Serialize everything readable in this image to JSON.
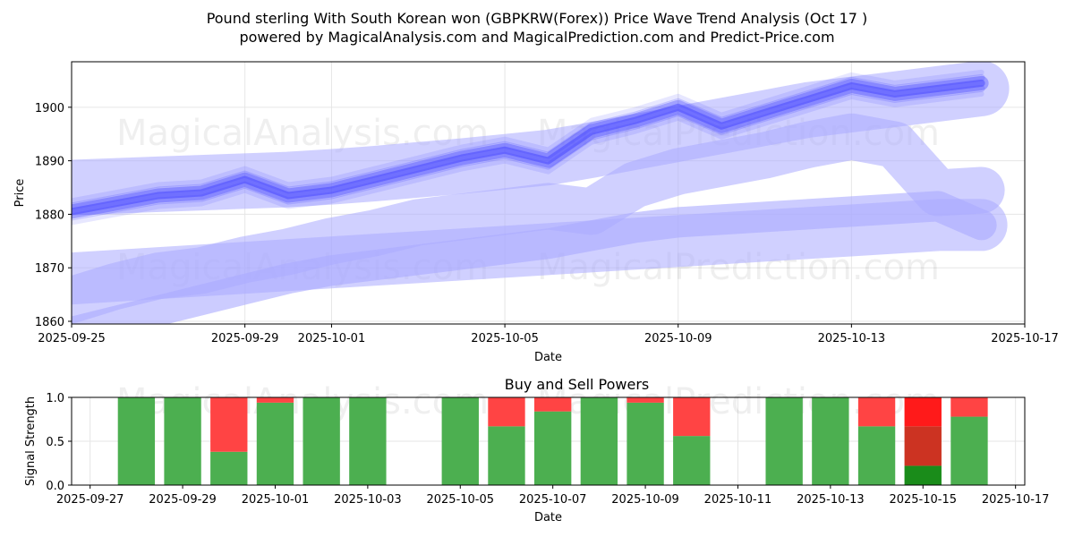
{
  "header": {
    "title_line1": "Pound sterling With South Korean won (GBPKRW(Forex)) Price Wave Trend Analysis (Oct 17 )",
    "title_line2": "powered by MagicalAnalysis.com and MagicalPrediction.com and Predict-Price.com"
  },
  "watermarks": [
    "MagicalAnalysis.com",
    "MagicalPrediction.com"
  ],
  "colors": {
    "wave": "#3c3cff",
    "band": "#aaaaff",
    "buy": "#4caf50",
    "sell": "#ff4444",
    "buy_strong": "#1a8c1a",
    "sell_strong": "#ff1a1a",
    "sell_mid": "#cc3322"
  },
  "chart_data": [
    {
      "type": "line",
      "title": "",
      "xlabel": "Date",
      "ylabel": "Price",
      "xlim": [
        "2025-09-25",
        "2025-10-17"
      ],
      "ylim": [
        1859.5,
        1908.5
      ],
      "xticks": [
        "2025-09-25",
        "2025-09-29",
        "2025-10-01",
        "2025-10-05",
        "2025-10-09",
        "2025-10-13",
        "2025-10-17"
      ],
      "yticks": [
        1860,
        1870,
        1880,
        1890,
        1900
      ],
      "x": [
        "2025-09-25",
        "2025-09-26",
        "2025-09-27",
        "2025-09-28",
        "2025-09-29",
        "2025-09-30",
        "2025-10-01",
        "2025-10-02",
        "2025-10-03",
        "2025-10-04",
        "2025-10-05",
        "2025-10-06",
        "2025-10-07",
        "2025-10-08",
        "2025-10-09",
        "2025-10-10",
        "2025-10-11",
        "2025-10-12",
        "2025-10-13",
        "2025-10-14",
        "2025-10-15",
        "2025-10-16"
      ],
      "series": [
        {
          "name": "price_wave",
          "values": [
            1880.5,
            1882.0,
            1883.5,
            1884.0,
            1886.5,
            1883.5,
            1884.5,
            1886.5,
            1888.5,
            1890.5,
            1892.0,
            1890.0,
            1895.5,
            1897.5,
            1900.0,
            1896.5,
            1899.0,
            1901.5,
            1904.0,
            1902.5,
            1903.5,
            1904.5
          ]
        },
        {
          "name": "trend_band_upper",
          "values": [
            1885.0,
            1885.3,
            1885.6,
            1885.9,
            1886.2,
            1886.5,
            1887.0,
            1887.6,
            1888.3,
            1889.0,
            1889.8,
            1890.6,
            1892.0,
            1893.5,
            1895.0,
            1896.5,
            1898.0,
            1899.5,
            1900.5,
            1901.5,
            1902.5,
            1903.5
          ]
        },
        {
          "name": "trend_band_mid",
          "values": [
            1864.0,
            1866.5,
            1868.5,
            1869.5,
            1871.5,
            1873.0,
            1875.0,
            1876.5,
            1878.5,
            1879.5,
            1880.5,
            1881.5,
            1880.5,
            1885.5,
            1888.0,
            1889.5,
            1891.0,
            1893.0,
            1894.5,
            1893.0,
            1884.0,
            1884.5
          ]
        },
        {
          "name": "trend_band_lower",
          "values": [
            1858.0,
            1860.0,
            1862.0,
            1864.0,
            1866.0,
            1868.0,
            1869.5,
            1870.5,
            1871.5,
            1872.5,
            1873.5,
            1874.5,
            1876.0,
            1877.5,
            1878.5,
            1879.0,
            1879.5,
            1880.0,
            1880.5,
            1881.0,
            1881.5,
            1878.0
          ]
        },
        {
          "name": "trend_band_low_edge",
          "values": [
            1868.0,
            1868.5,
            1869.0,
            1869.5,
            1870.0,
            1870.5,
            1871.0,
            1871.5,
            1872.0,
            1872.5,
            1873.0,
            1873.5,
            1874.0,
            1874.5,
            1875.0,
            1875.5,
            1876.0,
            1876.5,
            1877.0,
            1877.5,
            1878.0,
            1878.0
          ]
        }
      ]
    },
    {
      "type": "bar",
      "title": "Buy and Sell Powers",
      "xlabel": "Date",
      "ylabel": "Signal Strength",
      "xlim": [
        "2025-09-27",
        "2025-10-17"
      ],
      "ylim": [
        0,
        1.0
      ],
      "xticks": [
        "2025-09-27",
        "2025-09-29",
        "2025-10-01",
        "2025-10-03",
        "2025-10-05",
        "2025-10-07",
        "2025-10-09",
        "2025-10-11",
        "2025-10-13",
        "2025-10-15",
        "2025-10-17"
      ],
      "yticks": [
        "0.0",
        "0.5",
        "1.0"
      ],
      "categories": [
        "2025-09-28",
        "2025-09-29",
        "2025-09-30",
        "2025-10-01",
        "2025-10-02",
        "2025-10-03",
        "2025-10-05",
        "2025-10-06",
        "2025-10-07",
        "2025-10-08",
        "2025-10-09",
        "2025-10-10",
        "2025-10-12",
        "2025-10-13",
        "2025-10-14",
        "2025-10-15",
        "2025-10-16"
      ],
      "series": [
        {
          "name": "buy",
          "values": [
            1.0,
            1.0,
            0.38,
            0.94,
            1.0,
            1.0,
            1.0,
            0.67,
            0.84,
            1.0,
            0.94,
            0.56,
            1.0,
            1.0,
            0.67,
            0.22,
            0.78
          ]
        },
        {
          "name": "sell",
          "values": [
            0.0,
            0.0,
            0.62,
            0.06,
            0.0,
            0.0,
            0.0,
            0.33,
            0.16,
            0.0,
            0.06,
            0.44,
            0.0,
            0.0,
            0.33,
            0.78,
            0.22
          ]
        }
      ]
    }
  ]
}
